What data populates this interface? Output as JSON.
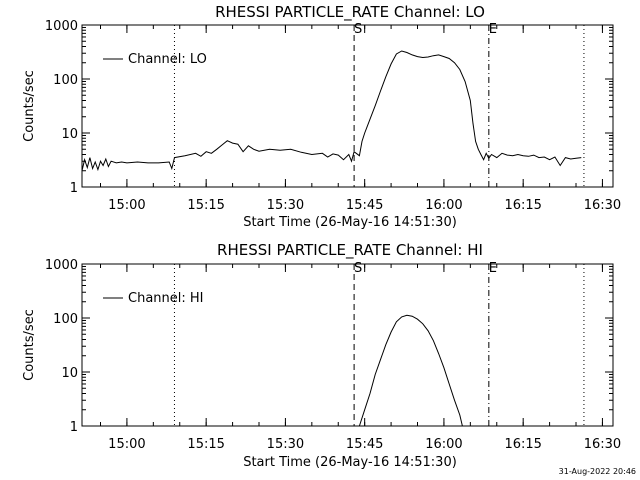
{
  "chart_data": [
    {
      "type": "line",
      "title": "RHESSI PARTICLE_RATE Channel: LO",
      "xlabel": "Start Time (26-May-16 14:51:30)",
      "ylabel": "Counts/sec",
      "ylog": true,
      "xlim": [
        "14:51:30",
        "16:32:00"
      ],
      "ylim": [
        1,
        1000
      ],
      "xticks": [
        "15:00",
        "15:15",
        "15:30",
        "15:45",
        "16:00",
        "16:15",
        "16:30"
      ],
      "yticks": [
        1,
        10,
        100,
        1000
      ],
      "ytick_labels": [
        "1",
        "10",
        "100",
        "1000"
      ],
      "legend": {
        "position": "top-left",
        "entries": [
          "Channel: LO"
        ]
      },
      "markers": [
        {
          "time": "15:09:00",
          "style": "dotted",
          "label": ""
        },
        {
          "time": "15:43:00",
          "style": "dashed",
          "label": "S"
        },
        {
          "time": "16:08:30",
          "style": "dash-dot",
          "label": "E"
        },
        {
          "time": "16:26:30",
          "style": "dotted",
          "label": ""
        }
      ],
      "series": [
        {
          "name": "Channel: LO",
          "points": [
            [
              "14:51:30",
              2.0
            ],
            [
              "14:52:00",
              3.2
            ],
            [
              "14:52:30",
              2.3
            ],
            [
              "14:53:00",
              3.5
            ],
            [
              "14:53:30",
              2.2
            ],
            [
              "14:54:00",
              2.9
            ],
            [
              "14:54:30",
              2.1
            ],
            [
              "14:55:00",
              3.0
            ],
            [
              "14:55:30",
              2.5
            ],
            [
              "14:56:00",
              3.3
            ],
            [
              "14:56:30",
              2.4
            ],
            [
              "14:57:00",
              3.0
            ],
            [
              "14:58:00",
              2.8
            ],
            [
              "14:59:00",
              2.9
            ],
            [
              "15:00:00",
              2.8
            ],
            [
              "15:02:00",
              2.9
            ],
            [
              "15:04:00",
              2.8
            ],
            [
              "15:06:00",
              2.8
            ],
            [
              "15:08:00",
              2.9
            ],
            [
              "15:08:30",
              2.2
            ],
            [
              "15:09:00",
              3.5
            ],
            [
              "15:11:00",
              3.8
            ],
            [
              "15:13:00",
              4.2
            ],
            [
              "15:14:00",
              3.7
            ],
            [
              "15:15:00",
              4.5
            ],
            [
              "15:16:00",
              4.2
            ],
            [
              "15:17:00",
              5.0
            ],
            [
              "15:18:00",
              6.0
            ],
            [
              "15:19:00",
              7.2
            ],
            [
              "15:20:00",
              6.5
            ],
            [
              "15:21:00",
              6.2
            ],
            [
              "15:22:00",
              4.5
            ],
            [
              "15:23:00",
              5.8
            ],
            [
              "15:24:00",
              5.0
            ],
            [
              "15:25:00",
              4.6
            ],
            [
              "15:27:00",
              5.0
            ],
            [
              "15:29:00",
              4.8
            ],
            [
              "15:31:00",
              5.0
            ],
            [
              "15:33:00",
              4.4
            ],
            [
              "15:35:00",
              4.0
            ],
            [
              "15:37:00",
              4.2
            ],
            [
              "15:38:00",
              3.6
            ],
            [
              "15:39:00",
              4.1
            ],
            [
              "15:40:00",
              3.9
            ],
            [
              "15:41:00",
              3.2
            ],
            [
              "15:42:00",
              4.0
            ],
            [
              "15:42:30",
              3.0
            ],
            [
              "15:43:00",
              4.5
            ],
            [
              "15:44:00",
              3.8
            ],
            [
              "15:44:30",
              7.0
            ],
            [
              "15:45:00",
              10.0
            ],
            [
              "15:46:00",
              18.0
            ],
            [
              "15:47:00",
              32.0
            ],
            [
              "15:48:00",
              60.0
            ],
            [
              "15:49:00",
              110.0
            ],
            [
              "15:50:00",
              190.0
            ],
            [
              "15:51:00",
              290.0
            ],
            [
              "15:52:00",
              330.0
            ],
            [
              "15:53:00",
              310.0
            ],
            [
              "15:54:00",
              280.0
            ],
            [
              "15:55:00",
              260.0
            ],
            [
              "15:56:00",
              250.0
            ],
            [
              "15:57:00",
              255.0
            ],
            [
              "15:58:00",
              270.0
            ],
            [
              "15:59:00",
              280.0
            ],
            [
              "16:00:00",
              260.0
            ],
            [
              "16:01:00",
              240.0
            ],
            [
              "16:02:00",
              200.0
            ],
            [
              "16:03:00",
              150.0
            ],
            [
              "16:04:00",
              90.0
            ],
            [
              "16:05:00",
              40.0
            ],
            [
              "16:05:30",
              15.0
            ],
            [
              "16:06:00",
              7.0
            ],
            [
              "16:06:30",
              5.0
            ],
            [
              "16:07:00",
              4.0
            ],
            [
              "16:07:30",
              3.2
            ],
            [
              "16:08:00",
              4.2
            ],
            [
              "16:08:30",
              3.4
            ],
            [
              "16:09:00",
              4.0
            ],
            [
              "16:10:00",
              3.5
            ],
            [
              "16:11:00",
              4.2
            ],
            [
              "16:12:00",
              3.9
            ],
            [
              "16:13:00",
              3.8
            ],
            [
              "16:14:00",
              4.0
            ],
            [
              "16:15:00",
              3.8
            ],
            [
              "16:16:00",
              3.7
            ],
            [
              "16:17:00",
              3.9
            ],
            [
              "16:18:00",
              3.5
            ],
            [
              "16:19:00",
              3.6
            ],
            [
              "16:20:00",
              3.2
            ],
            [
              "16:21:00",
              3.6
            ],
            [
              "16:22:00",
              2.5
            ],
            [
              "16:23:00",
              3.5
            ],
            [
              "16:24:00",
              3.3
            ],
            [
              "16:25:00",
              3.4
            ],
            [
              "16:26:00",
              3.5
            ]
          ]
        }
      ]
    },
    {
      "type": "line",
      "title": "RHESSI PARTICLE_RATE Channel: HI",
      "xlabel": "Start Time (26-May-16 14:51:30)",
      "ylabel": "Counts/sec",
      "ylog": true,
      "xlim": [
        "14:51:30",
        "16:32:00"
      ],
      "ylim": [
        1,
        1000
      ],
      "xticks": [
        "15:00",
        "15:15",
        "15:30",
        "15:45",
        "16:00",
        "16:15",
        "16:30"
      ],
      "yticks": [
        1,
        10,
        100,
        1000
      ],
      "ytick_labels": [
        "1",
        "10",
        "100",
        "1000"
      ],
      "legend": {
        "position": "top-left",
        "entries": [
          "Channel: HI"
        ]
      },
      "markers": [
        {
          "time": "15:09:00",
          "style": "dotted",
          "label": ""
        },
        {
          "time": "15:43:00",
          "style": "dashed",
          "label": "S"
        },
        {
          "time": "16:08:30",
          "style": "dash-dot",
          "label": "E"
        },
        {
          "time": "16:26:30",
          "style": "dotted",
          "label": ""
        }
      ],
      "series": [
        {
          "name": "Channel: HI",
          "points": [
            [
              "15:44:00",
              1.0
            ],
            [
              "15:45:00",
              2.0
            ],
            [
              "15:46:00",
              4.0
            ],
            [
              "15:47:00",
              9.0
            ],
            [
              "15:48:00",
              17.0
            ],
            [
              "15:49:00",
              32.0
            ],
            [
              "15:50:00",
              55.0
            ],
            [
              "15:51:00",
              85.0
            ],
            [
              "15:52:00",
              105.0
            ],
            [
              "15:53:00",
              112.0
            ],
            [
              "15:54:00",
              108.0
            ],
            [
              "15:55:00",
              95.0
            ],
            [
              "15:56:00",
              78.0
            ],
            [
              "15:57:00",
              58.0
            ],
            [
              "15:58:00",
              38.0
            ],
            [
              "15:59:00",
              22.0
            ],
            [
              "16:00:00",
              12.0
            ],
            [
              "16:01:00",
              6.0
            ],
            [
              "16:02:00",
              3.0
            ],
            [
              "16:03:00",
              1.6
            ],
            [
              "16:03:30",
              1.0
            ]
          ]
        }
      ]
    }
  ],
  "footer": {
    "timestamp": "31-Aug-2022 20:46"
  }
}
